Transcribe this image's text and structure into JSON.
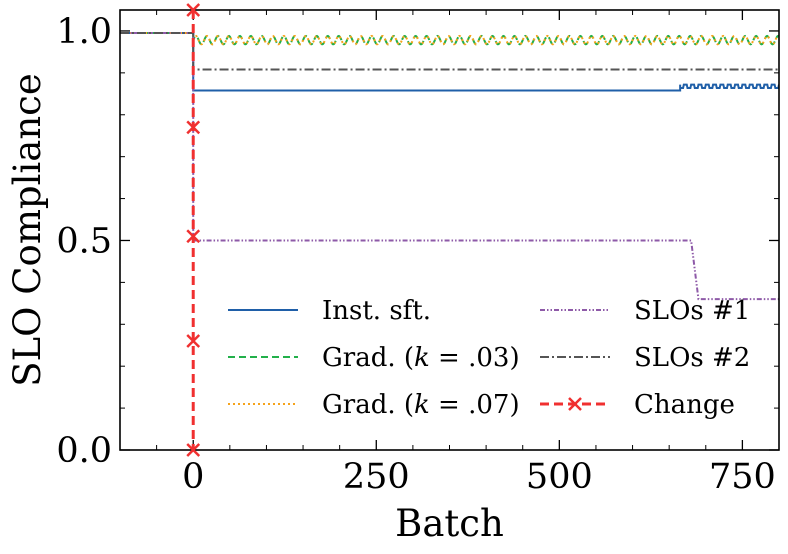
{
  "chart_data": {
    "type": "line",
    "title": "",
    "xlabel": "Batch",
    "ylabel": "SLO Compliance",
    "xlim": [
      -100,
      800
    ],
    "ylim": [
      0,
      1.05
    ],
    "xticks": [
      {
        "value": 0,
        "label": "0"
      },
      {
        "value": 250,
        "label": "250"
      },
      {
        "value": 500,
        "label": "500"
      },
      {
        "value": 750,
        "label": "750"
      }
    ],
    "yticks": [
      {
        "value": 0.0,
        "label": "0.0"
      },
      {
        "value": 0.5,
        "label": "0.5"
      },
      {
        "value": 1.0,
        "label": "1.0"
      }
    ],
    "legend_position": "lower-right",
    "series": [
      {
        "name": "Inst. sft.",
        "color": "#1f5fa8",
        "style": "solid",
        "points": [
          [
            -100,
            0.995
          ],
          [
            0,
            0.995
          ],
          [
            0,
            0.858
          ],
          [
            665,
            0.858
          ],
          [
            665,
            0.872
          ],
          [
            800,
            0.872
          ]
        ],
        "ripple": {
          "from": 665,
          "to": 800,
          "period": 10,
          "amplitude": 0.008
        }
      },
      {
        "name": "Grad. (k = .03)",
        "legend_pre": "Grad. (",
        "legend_var": "k",
        "legend_post": " = .03)",
        "color": "#22b04a",
        "style": "dashed",
        "points": [
          [
            -100,
            0.995
          ],
          [
            0,
            0.995
          ],
          [
            0,
            0.992
          ],
          [
            800,
            0.992
          ]
        ],
        "ripple": {
          "from": 0,
          "to": 800,
          "period": 15,
          "amplitude": 0.01,
          "base": 0.978
        }
      },
      {
        "name": "Grad. (k = .07)",
        "legend_pre": "Grad. (",
        "legend_var": "k",
        "legend_post": " = .07)",
        "color": "#f5a31b",
        "style": "dotted",
        "points": [
          [
            -100,
            0.995
          ],
          [
            0,
            0.995
          ],
          [
            0,
            0.992
          ],
          [
            800,
            0.992
          ]
        ],
        "ripple": {
          "from": 0,
          "to": 800,
          "period": 15,
          "amplitude": 0.01,
          "base": 0.978
        }
      },
      {
        "name": "SLOs #1",
        "color": "#8e5aa8",
        "style": "dashdotdot",
        "points": [
          [
            -100,
            0.995
          ],
          [
            0,
            0.995
          ],
          [
            0,
            0.5
          ],
          [
            680,
            0.5
          ],
          [
            690,
            0.36
          ],
          [
            800,
            0.36
          ]
        ]
      },
      {
        "name": "SLOs #2",
        "color": "#555555",
        "style": "dashdot",
        "points": [
          [
            -100,
            0.995
          ],
          [
            0,
            0.995
          ],
          [
            0,
            0.908
          ],
          [
            800,
            0.908
          ]
        ]
      }
    ],
    "change_marker": {
      "name": "Change",
      "color": "#f03030",
      "x": 0,
      "markers": [
        1.05,
        0.77,
        0.51,
        0.26,
        0.0
      ]
    },
    "legend_columns": [
      [
        "Inst. sft.",
        "Grad. (k = .03)",
        "Grad. (k = .07)"
      ],
      [
        "SLOs #1",
        "SLOs #2",
        "Change"
      ]
    ]
  }
}
